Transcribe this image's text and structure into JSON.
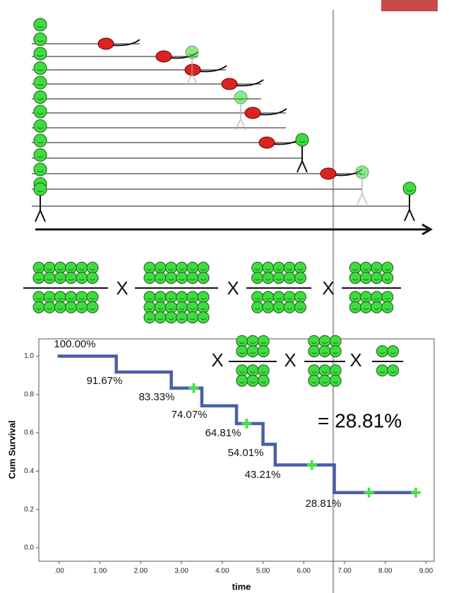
{
  "chart_data": {
    "type": "step",
    "ylabel": "Cum Survival",
    "xlabel": "time",
    "series": [
      {
        "name": "Survival",
        "color": "#4a5fa8",
        "x": [
          0,
          1.4,
          2.75,
          3.5,
          4.35,
          5.0,
          5.3,
          6.75
        ],
        "values": [
          1.0,
          0.9167,
          0.8333,
          0.7407,
          0.6481,
          0.5401,
          0.4321,
          0.2881
        ],
        "value_labels": [
          "100.00%",
          "91.67%",
          "83.33%",
          "74.07%",
          "64.81%",
          "54.01%",
          "43.21%",
          "28.81%"
        ]
      }
    ],
    "censored": {
      "color": "#3ee83e",
      "x": [
        3.3,
        4.6,
        6.2,
        7.6,
        8.75
      ],
      "values": [
        0.8333,
        0.6481,
        0.4321,
        0.2881,
        0.2881
      ]
    },
    "xlim": [
      -0.5,
      9.2
    ],
    "ylim": [
      -0.07,
      1.09
    ],
    "xticks": [
      {
        "value": 0,
        "label": ".00"
      },
      {
        "value": 1,
        "label": "1.00"
      },
      {
        "value": 2,
        "label": "2.00"
      },
      {
        "value": 3,
        "label": "3.00"
      },
      {
        "value": 4,
        "label": "4.00"
      },
      {
        "value": 5,
        "label": "5.00"
      },
      {
        "value": 6,
        "label": "6.00"
      },
      {
        "value": 7,
        "label": "7.00"
      },
      {
        "value": 8,
        "label": "8.00"
      },
      {
        "value": 9,
        "label": "9.00"
      }
    ],
    "yticks": [
      {
        "value": 0,
        "label": "0.0"
      },
      {
        "value": 0.2,
        "label": "0.2"
      },
      {
        "value": 0.4,
        "label": "0.4"
      },
      {
        "value": 0.6,
        "label": "0.6"
      },
      {
        "value": 0.8,
        "label": "0.8"
      },
      {
        "value": 1,
        "label": "1.0"
      }
    ],
    "result": "= 28.81%",
    "operators": [
      "X",
      "X",
      "X",
      "X",
      "X",
      "X"
    ]
  }
}
